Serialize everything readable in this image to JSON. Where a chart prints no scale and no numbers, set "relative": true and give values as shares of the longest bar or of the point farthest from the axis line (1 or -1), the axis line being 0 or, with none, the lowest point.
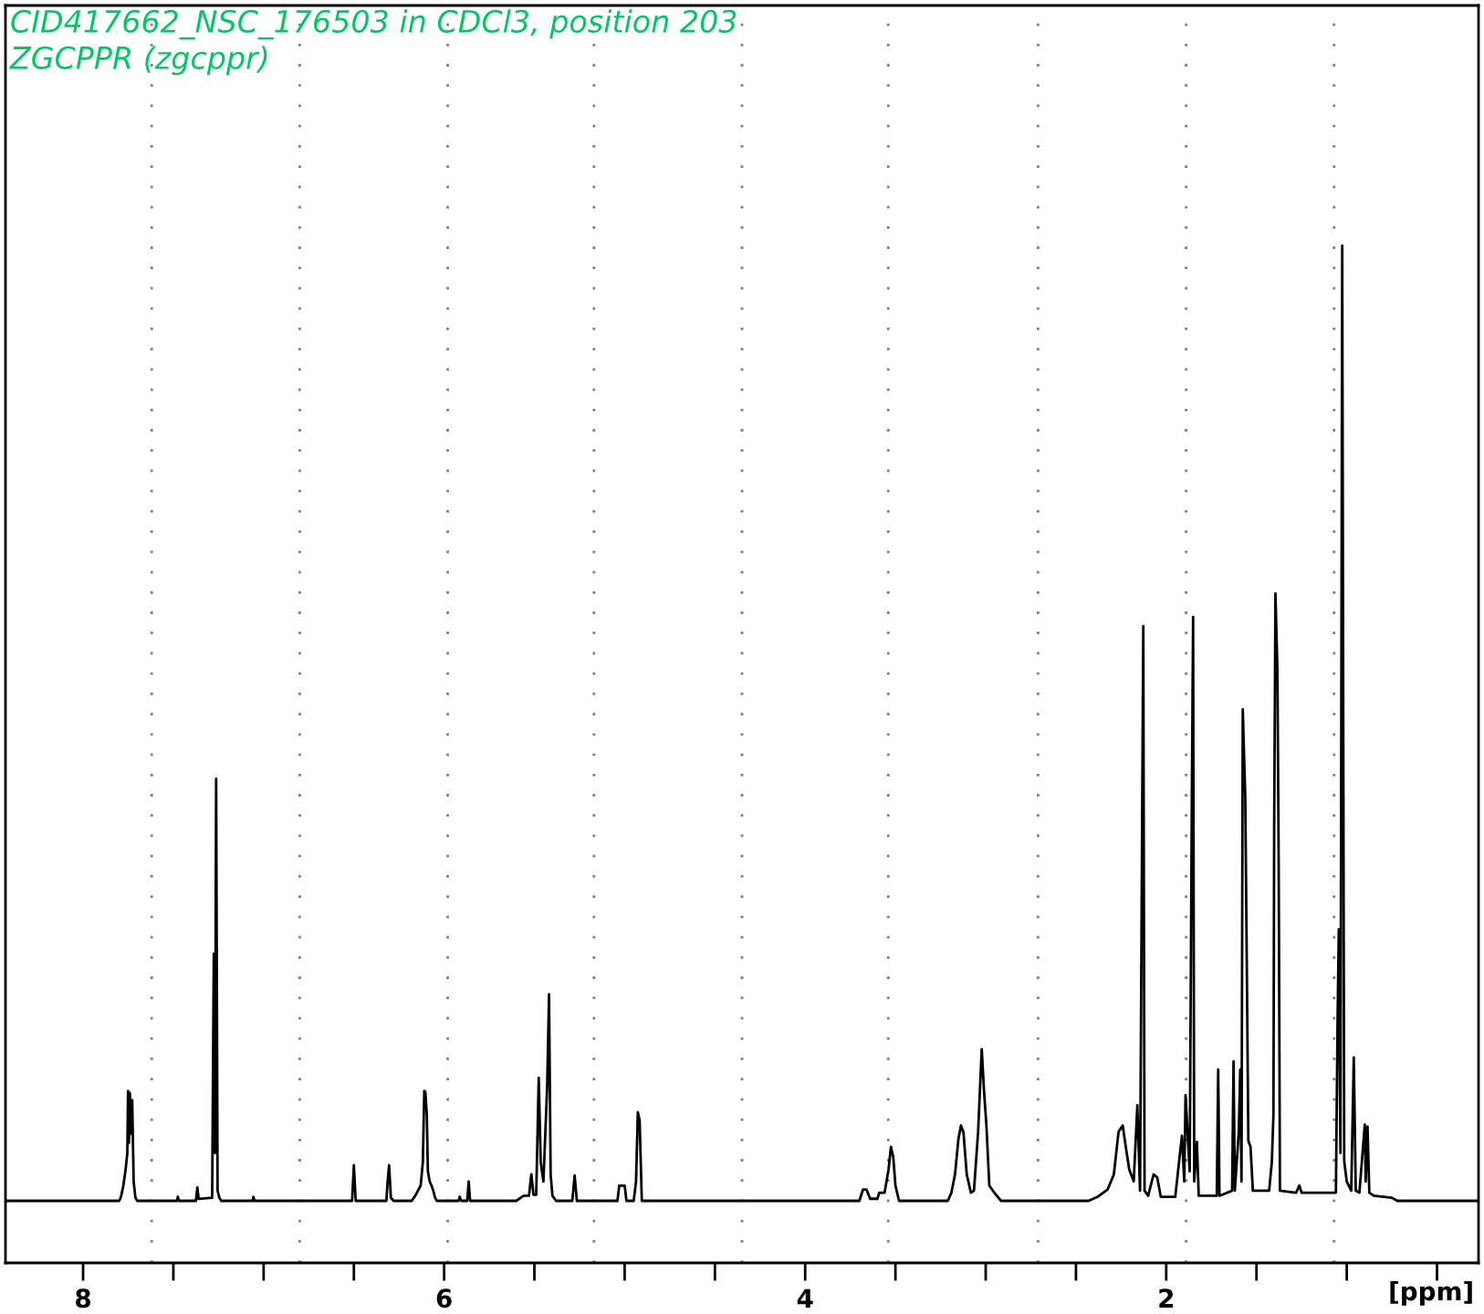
{
  "chart_data": {
    "type": "line",
    "title": "CID417662_NSC_176503 in CDCl3, position 203",
    "subtitle": "ZGCPPR (zgcppr)",
    "xlabel": "[ppm]",
    "relative": true,
    "color": "#000000",
    "line_style": "solid",
    "xlim": [
      8.43,
      0.27
    ],
    "xticks": [
      8,
      {
        "value": 7.5,
        "label": null
      },
      {
        "value": 7,
        "label": null
      },
      {
        "value": 6.5,
        "label": null
      },
      6,
      {
        "value": 5.5,
        "label": null
      },
      {
        "value": 5,
        "label": null
      },
      {
        "value": 4.5,
        "label": null
      },
      4,
      {
        "value": 3.5,
        "label": null
      },
      {
        "value": 3,
        "label": null
      },
      {
        "value": 2.5,
        "label": null
      },
      2,
      {
        "value": 1.5,
        "label": null
      },
      {
        "value": 1,
        "label": null
      },
      {
        "value": 0.5,
        "label": null
      }
    ],
    "tick_labels": "x",
    "ref_lines": [
      {
        "axis": "x",
        "value": 7.62,
        "line_style": "dotted",
        "color": "#808080"
      },
      {
        "axis": "x",
        "value": 6.8,
        "line_style": "dotted",
        "color": "#808080"
      },
      {
        "axis": "x",
        "value": 5.98,
        "line_style": "dotted",
        "color": "#808080"
      },
      {
        "axis": "x",
        "value": 5.17,
        "line_style": "dotted",
        "color": "#808080"
      },
      {
        "axis": "x",
        "value": 4.35,
        "line_style": "dotted",
        "color": "#808080"
      },
      {
        "axis": "x",
        "value": 3.54,
        "line_style": "dotted",
        "color": "#808080"
      },
      {
        "axis": "x",
        "value": 2.71,
        "line_style": "dotted",
        "color": "#808080"
      },
      {
        "axis": "x",
        "value": 1.89,
        "line_style": "dotted",
        "color": "#808080"
      },
      {
        "axis": "x",
        "value": 1.07,
        "line_style": "dotted",
        "color": "#808080"
      }
    ],
    "x": [
      8.43,
      7.8,
      7.79,
      7.778,
      7.765,
      7.755,
      7.751,
      7.746,
      7.741,
      7.735,
      7.728,
      7.72,
      7.71,
      7.7,
      7.48,
      7.475,
      7.47,
      7.375,
      7.367,
      7.36,
      7.285,
      7.276,
      7.27,
      7.263,
      7.255,
      7.245,
      7.235,
      7.06,
      7.057,
      7.05,
      6.51,
      6.5,
      6.49,
      6.32,
      6.313,
      6.305,
      6.295,
      6.28,
      6.18,
      6.16,
      6.13,
      6.118,
      6.11,
      6.104,
      6.096,
      6.09,
      6.08,
      6.07,
      6.06,
      6.05,
      6.04,
      5.92,
      5.914,
      5.905,
      5.872,
      5.864,
      5.856,
      5.6,
      5.56,
      5.53,
      5.517,
      5.505,
      5.49,
      5.476,
      5.465,
      5.45,
      5.429,
      5.419,
      5.41,
      5.4,
      5.38,
      5.29,
      5.277,
      5.265,
      5.04,
      5.03,
      5.0,
      4.99,
      4.95,
      4.937,
      4.927,
      4.917,
      4.905,
      3.7,
      3.68,
      3.66,
      3.64,
      3.6,
      3.59,
      3.56,
      3.538,
      3.525,
      3.512,
      3.5,
      3.48,
      3.21,
      3.19,
      3.17,
      3.151,
      3.137,
      3.123,
      3.105,
      3.082,
      3.065,
      3.042,
      3.022,
      3.009,
      2.996,
      2.98,
      2.948,
      2.915,
      2.43,
      2.38,
      2.325,
      2.29,
      2.264,
      2.241,
      2.224,
      2.205,
      2.18,
      2.16,
      2.145,
      2.133,
      2.127,
      2.12,
      2.1,
      2.07,
      2.05,
      2.03,
      1.95,
      1.913,
      1.9,
      1.893,
      1.87,
      1.858,
      1.851,
      1.845,
      1.83,
      1.82,
      1.8,
      1.72,
      1.712,
      1.705,
      1.635,
      1.627,
      1.62,
      1.598,
      1.59,
      1.583,
      1.576,
      1.562,
      1.555,
      1.545,
      1.533,
      1.52,
      1.43,
      1.415,
      1.406,
      1.402,
      1.395,
      1.384,
      1.377,
      1.37,
      1.28,
      1.263,
      1.25,
      1.06,
      1.051,
      1.044,
      1.035,
      1.025,
      1.014,
      1.0,
      0.975,
      0.961,
      0.95,
      0.93,
      0.9,
      0.895,
      0.885,
      0.875,
      0.85,
      0.75,
      0.72,
      0.27
    ],
    "values": [
      0.061,
      0.061,
      0.065,
      0.075,
      0.091,
      0.108,
      0.169,
      0.118,
      0.167,
      0.127,
      0.16,
      0.08,
      0.064,
      0.061,
      0.061,
      0.065,
      0.061,
      0.061,
      0.074,
      0.063,
      0.064,
      0.304,
      0.108,
      0.476,
      0.071,
      0.064,
      0.061,
      0.061,
      0.065,
      0.061,
      0.061,
      0.096,
      0.061,
      0.061,
      0.08,
      0.096,
      0.064,
      0.061,
      0.061,
      0.066,
      0.076,
      0.099,
      0.169,
      0.168,
      0.145,
      0.09,
      0.08,
      0.076,
      0.071,
      0.064,
      0.061,
      0.061,
      0.065,
      0.061,
      0.061,
      0.08,
      0.061,
      0.061,
      0.066,
      0.066,
      0.087,
      0.067,
      0.067,
      0.182,
      0.099,
      0.08,
      0.175,
      0.264,
      0.087,
      0.066,
      0.061,
      0.061,
      0.086,
      0.061,
      0.061,
      0.076,
      0.076,
      0.061,
      0.061,
      0.08,
      0.148,
      0.14,
      0.061,
      0.061,
      0.072,
      0.072,
      0.063,
      0.063,
      0.069,
      0.069,
      0.092,
      0.114,
      0.104,
      0.076,
      0.061,
      0.061,
      0.069,
      0.087,
      0.122,
      0.135,
      0.128,
      0.087,
      0.069,
      0.071,
      0.129,
      0.21,
      0.168,
      0.135,
      0.076,
      0.068,
      0.061,
      0.061,
      0.065,
      0.072,
      0.087,
      0.129,
      0.135,
      0.114,
      0.092,
      0.08,
      0.155,
      0.071,
      0.447,
      0.626,
      0.071,
      0.066,
      0.087,
      0.084,
      0.065,
      0.065,
      0.125,
      0.08,
      0.165,
      0.09,
      0.459,
      0.635,
      0.08,
      0.119,
      0.066,
      0.066,
      0.066,
      0.19,
      0.066,
      0.071,
      0.198,
      0.071,
      0.129,
      0.19,
      0.08,
      0.544,
      0.457,
      0.319,
      0.12,
      0.114,
      0.071,
      0.071,
      0.099,
      0.146,
      0.427,
      0.658,
      0.582,
      0.393,
      0.071,
      0.069,
      0.076,
      0.069,
      0.069,
      0.235,
      0.328,
      0.108,
      1.0,
      0.1,
      0.08,
      0.071,
      0.202,
      0.071,
      0.069,
      0.136,
      0.08,
      0.134,
      0.069,
      0.066,
      0.064,
      0.061,
      0.061
    ]
  }
}
